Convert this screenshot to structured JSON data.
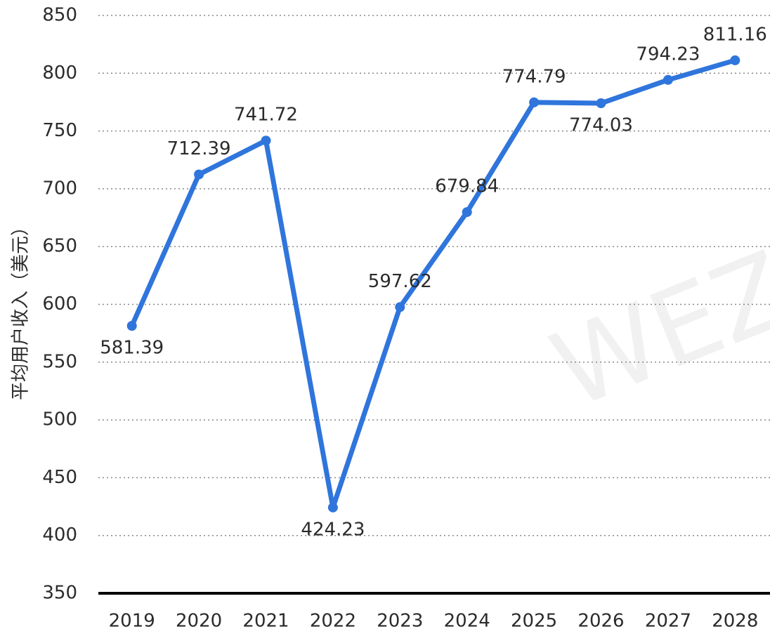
{
  "chart_data": {
    "type": "line",
    "y_label": "平均用户收入（美元）",
    "watermark": "WEZ",
    "categories": [
      "2019",
      "2020",
      "2021",
      "2022",
      "2023",
      "2024",
      "2025",
      "2026",
      "2027",
      "2028"
    ],
    "series": [
      {
        "name": "平均用户收入",
        "color": "#2f75dc",
        "values": [
          581.39,
          712.39,
          741.72,
          424.23,
          597.62,
          679.84,
          774.79,
          774.03,
          794.23,
          811.16
        ]
      }
    ],
    "ylim": [
      350,
      850
    ],
    "yticks": [
      350,
      400,
      450,
      500,
      550,
      600,
      650,
      700,
      750,
      800,
      850
    ],
    "grid": true
  }
}
